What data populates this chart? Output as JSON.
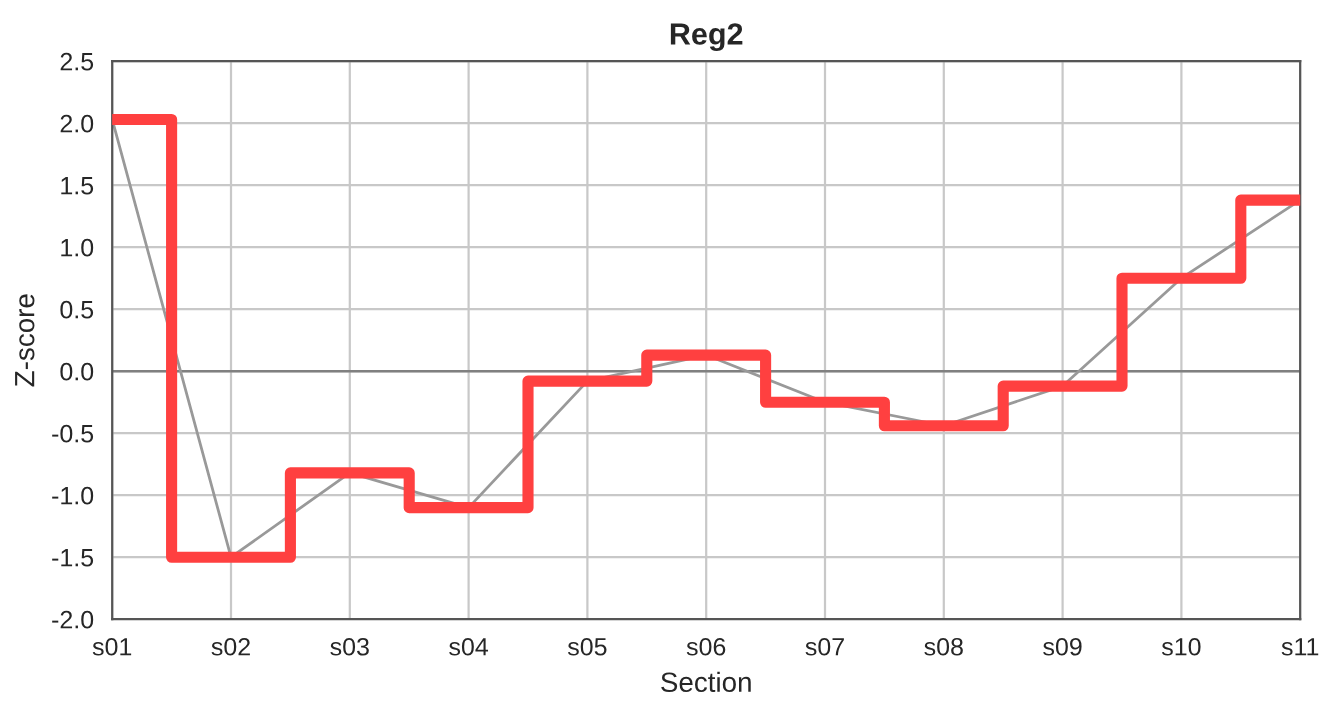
{
  "chart_data": {
    "type": "step",
    "title": "Reg2",
    "xlabel": "Section",
    "ylabel": "Z-score",
    "categories": [
      "s01",
      "s02",
      "s03",
      "s04",
      "s05",
      "s06",
      "s07",
      "s08",
      "s09",
      "s10",
      "s11"
    ],
    "series": [
      {
        "type": "line",
        "color": "#999999",
        "values": [
          2.03,
          -1.5,
          -0.82,
          -1.1,
          -0.08,
          0.13,
          -0.25,
          -0.44,
          -0.12,
          0.75,
          1.38
        ]
      },
      {
        "color": "#ff4040",
        "values": [
          2.03,
          -1.5,
          -0.82,
          -1.1,
          -0.08,
          0.13,
          -0.25,
          -0.44,
          -0.12,
          0.75,
          1.38
        ]
      }
    ],
    "ylim": [
      -2,
      2.5
    ],
    "yticks": [
      {
        "value": -2,
        "label": "-2.0"
      },
      {
        "value": -1.5,
        "label": "-1.5"
      },
      {
        "value": -1,
        "label": "-1.0"
      },
      {
        "value": -0.5,
        "label": "-0.5"
      },
      {
        "value": 0,
        "label": "0.0"
      },
      {
        "value": 0.5,
        "label": "0.5"
      },
      {
        "value": 1,
        "label": "1.0"
      },
      {
        "value": 1.5,
        "label": "1.5"
      },
      {
        "value": 2,
        "label": "2.0"
      },
      {
        "value": 2.5,
        "label": "2.5"
      }
    ],
    "ref_lines": [
      {
        "axis": "y",
        "value": 0,
        "color": "#808080"
      }
    ],
    "grid": true
  }
}
